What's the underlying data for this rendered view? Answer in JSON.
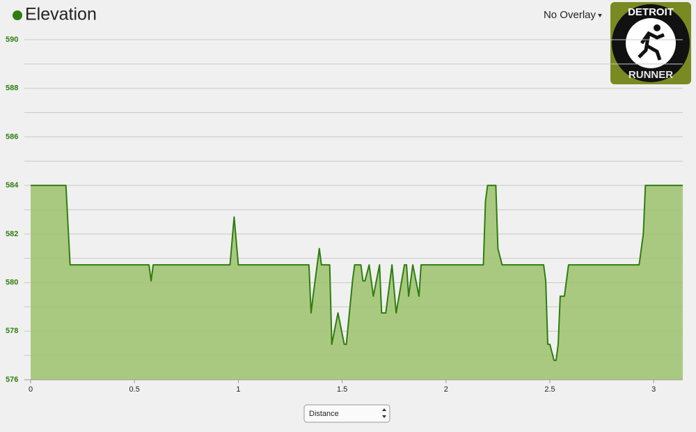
{
  "chart_data": {
    "type": "area",
    "title": "Elevation",
    "overlay_label": "No Overlay",
    "logo": {
      "top_text": "DETROIT",
      "bottom_text": "RUNNER"
    },
    "x_selector": "Distance",
    "x": [
      0,
      0.17,
      0.19,
      0.57,
      0.58,
      0.59,
      0.96,
      0.98,
      1.0,
      1.34,
      1.35,
      1.36,
      1.39,
      1.4,
      1.44,
      1.45,
      1.48,
      1.51,
      1.52,
      1.55,
      1.56,
      1.59,
      1.6,
      1.61,
      1.63,
      1.65,
      1.68,
      1.69,
      1.71,
      1.74,
      1.76,
      1.8,
      1.81,
      1.82,
      1.84,
      1.87,
      1.88,
      2.18,
      2.19,
      2.2,
      2.24,
      2.25,
      2.27,
      2.47,
      2.48,
      2.49,
      2.5,
      2.52,
      2.53,
      2.54,
      2.55,
      2.57,
      2.59,
      2.93,
      2.95,
      2.96,
      3.14
    ],
    "series": [
      {
        "name": "Elevation",
        "color": "#2e7d0f",
        "fill": "#9dc26c",
        "values": [
          584,
          584,
          580.73,
          580.73,
          580.07,
          580.73,
          580.73,
          582.7,
          580.73,
          580.73,
          578.75,
          579.44,
          581.4,
          580.73,
          580.73,
          577.46,
          578.75,
          577.46,
          577.46,
          580.07,
          580.73,
          580.73,
          580.07,
          580.07,
          580.73,
          579.44,
          580.73,
          578.75,
          578.75,
          580.73,
          578.75,
          580.73,
          580.73,
          579.44,
          580.73,
          579.44,
          580.73,
          580.73,
          583.34,
          584,
          584,
          581.4,
          580.73,
          580.73,
          580.07,
          577.46,
          577.46,
          576.8,
          576.8,
          577.46,
          579.44,
          579.44,
          580.73,
          580.73,
          582.0,
          584,
          584
        ]
      }
    ],
    "xlim": [
      0,
      3.14
    ],
    "xticks": [
      0,
      0.5,
      1,
      1.5,
      2,
      2.5,
      3
    ],
    "ylim": [
      576,
      590
    ],
    "yticks": [
      576,
      578,
      580,
      582,
      584,
      586,
      588,
      590
    ],
    "minor_yticks": [
      577,
      579,
      581,
      583,
      585,
      587,
      589
    ],
    "grid": true
  }
}
